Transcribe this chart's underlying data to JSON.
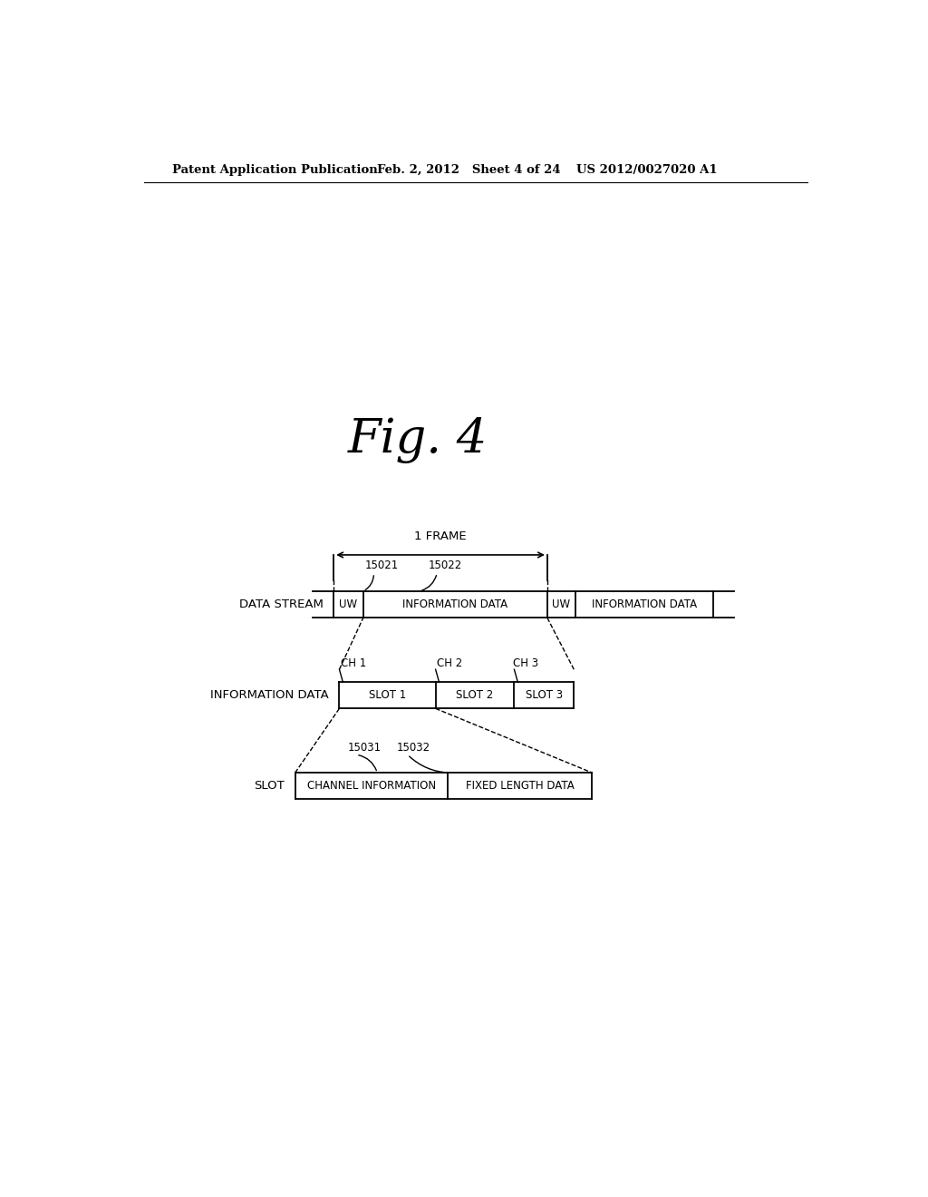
{
  "title": "Fig. 4",
  "header_left": "Patent Application Publication",
  "header_mid": "Feb. 2, 2012   Sheet 4 of 24",
  "header_right": "US 2012/0027020 A1",
  "bg_color": "#ffffff",
  "text_color": "#000000",
  "frame_label": "1 FRAME",
  "label_15021": "15021",
  "label_15022": "15022",
  "label_15031": "15031",
  "label_15032": "15032",
  "data_stream_label": "DATA STREAM",
  "info_data_label": "INFORMATION DATA",
  "slot_label": "SLOT"
}
